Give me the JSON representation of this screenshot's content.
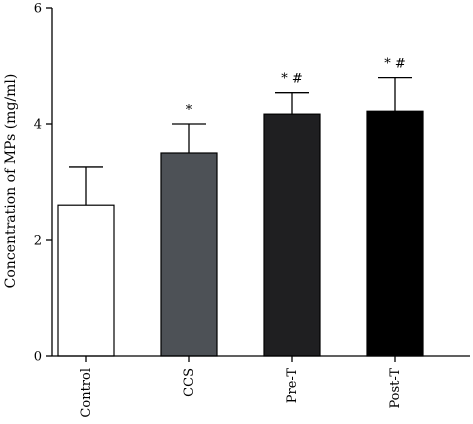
{
  "chart_data": {
    "type": "bar",
    "title": "",
    "xlabel": "",
    "ylabel": "Concentration of MPs (mg/ml)",
    "ylim": [
      0,
      6
    ],
    "yticks": [
      0,
      2,
      4,
      6
    ],
    "grid": false,
    "categories": [
      "Control",
      "CCS",
      "Pre-T",
      "Post-T"
    ],
    "values": [
      2.6,
      3.5,
      4.17,
      4.22
    ],
    "errors": [
      0.66,
      0.5,
      0.37,
      0.58
    ],
    "annotations": [
      "",
      "*",
      "*#",
      "*#"
    ],
    "colors": [
      "#ffffff",
      "#4d5156",
      "#1f1f21",
      "#000000"
    ]
  }
}
